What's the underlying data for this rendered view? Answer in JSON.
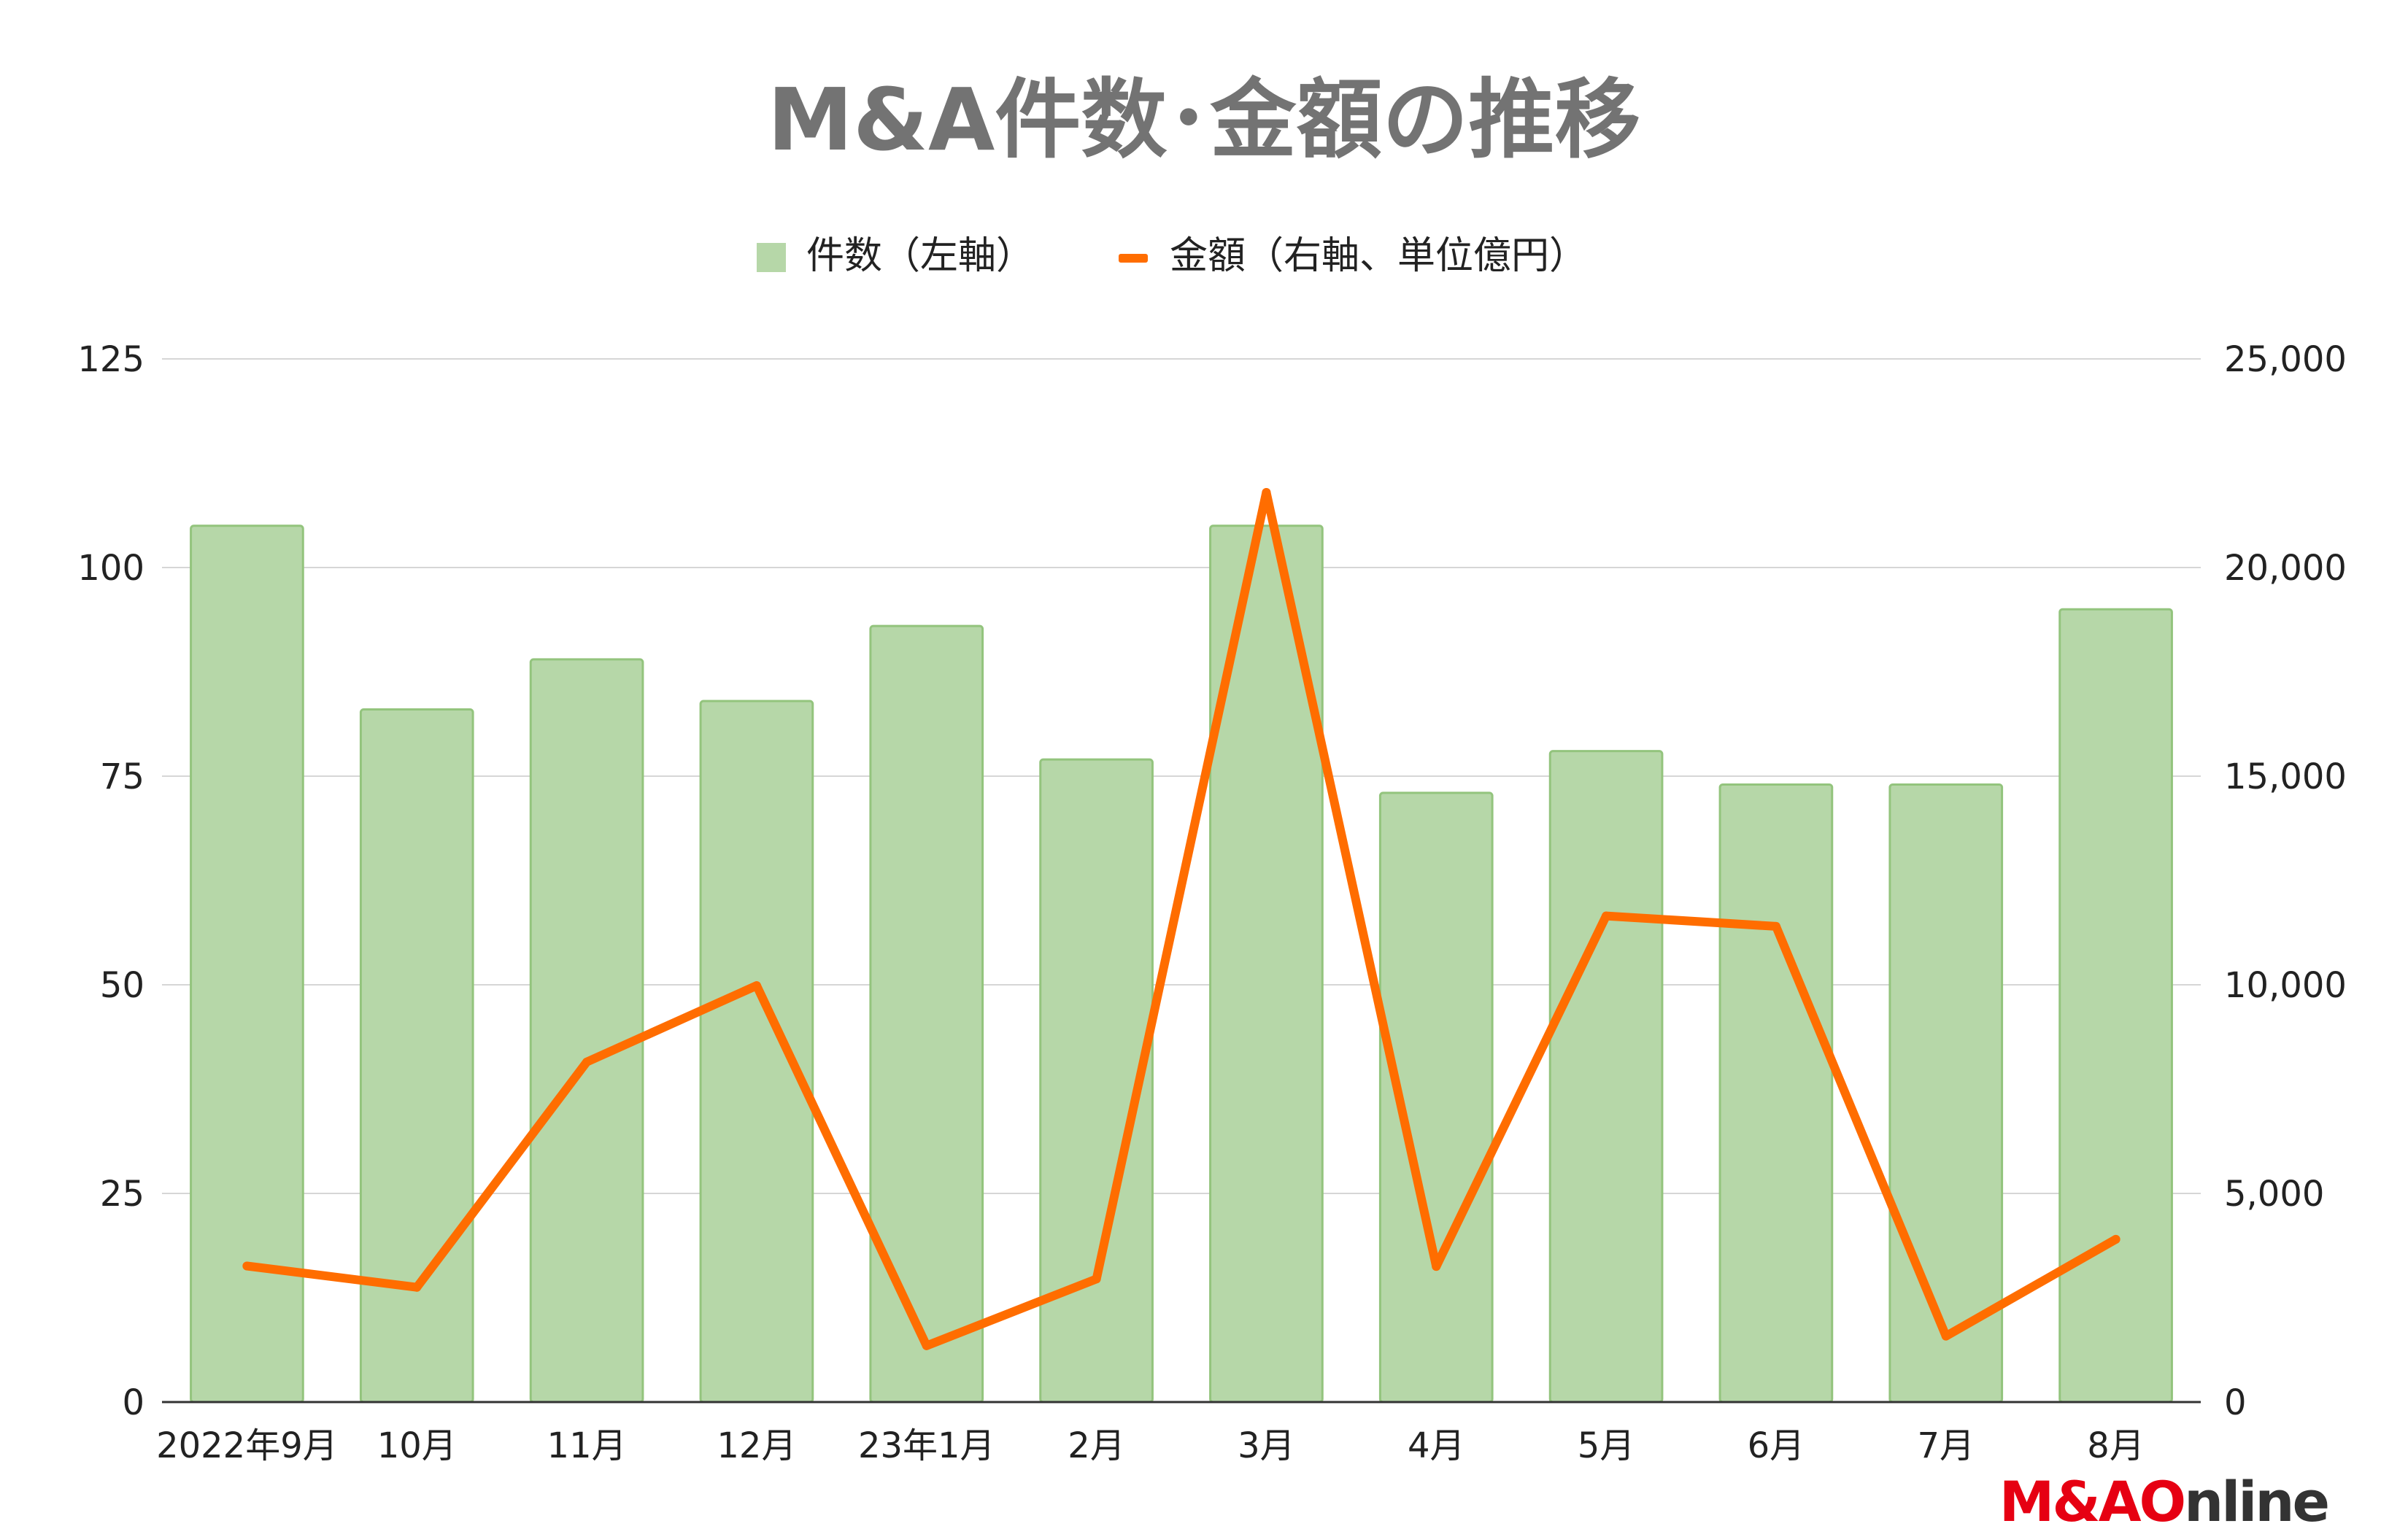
{
  "chart_data": {
    "type": "bar",
    "title": "M&A件数･金額の推移",
    "categories": [
      "2022年9月",
      "10月",
      "11月",
      "12月",
      "23年1月",
      "2月",
      "3月",
      "4月",
      "5月",
      "6月",
      "7月",
      "8月"
    ],
    "series": [
      {
        "name": "件数（左軸）",
        "type": "bar",
        "axis": "left",
        "color": "#b6d7a8",
        "values": [
          105,
          83,
          89,
          84,
          93,
          77,
          105,
          73,
          78,
          74,
          74,
          95
        ]
      },
      {
        "name": "金額（右軸、単位億円）",
        "type": "line",
        "axis": "right",
        "color": "#ff6d00",
        "values": [
          3260,
          2750,
          8150,
          9980,
          1350,
          2950,
          21800,
          3250,
          11650,
          11400,
          1580,
          3900
        ]
      }
    ],
    "y_left": {
      "range": [
        0,
        125
      ],
      "ticks": [
        "0",
        "25",
        "50",
        "75",
        "100",
        "125"
      ]
    },
    "y_right": {
      "range": [
        0,
        25000
      ],
      "ticks": [
        "0",
        "5,000",
        "10,000",
        "15,000",
        "20,000",
        "25,000"
      ]
    },
    "grid": true,
    "legend_position": "top-center"
  },
  "logo": {
    "text": "M&AOnline",
    "part1": "M&A",
    "part2": "O",
    "part3": "nline",
    "color_red": "#e60012",
    "color_dark": "#333333"
  }
}
